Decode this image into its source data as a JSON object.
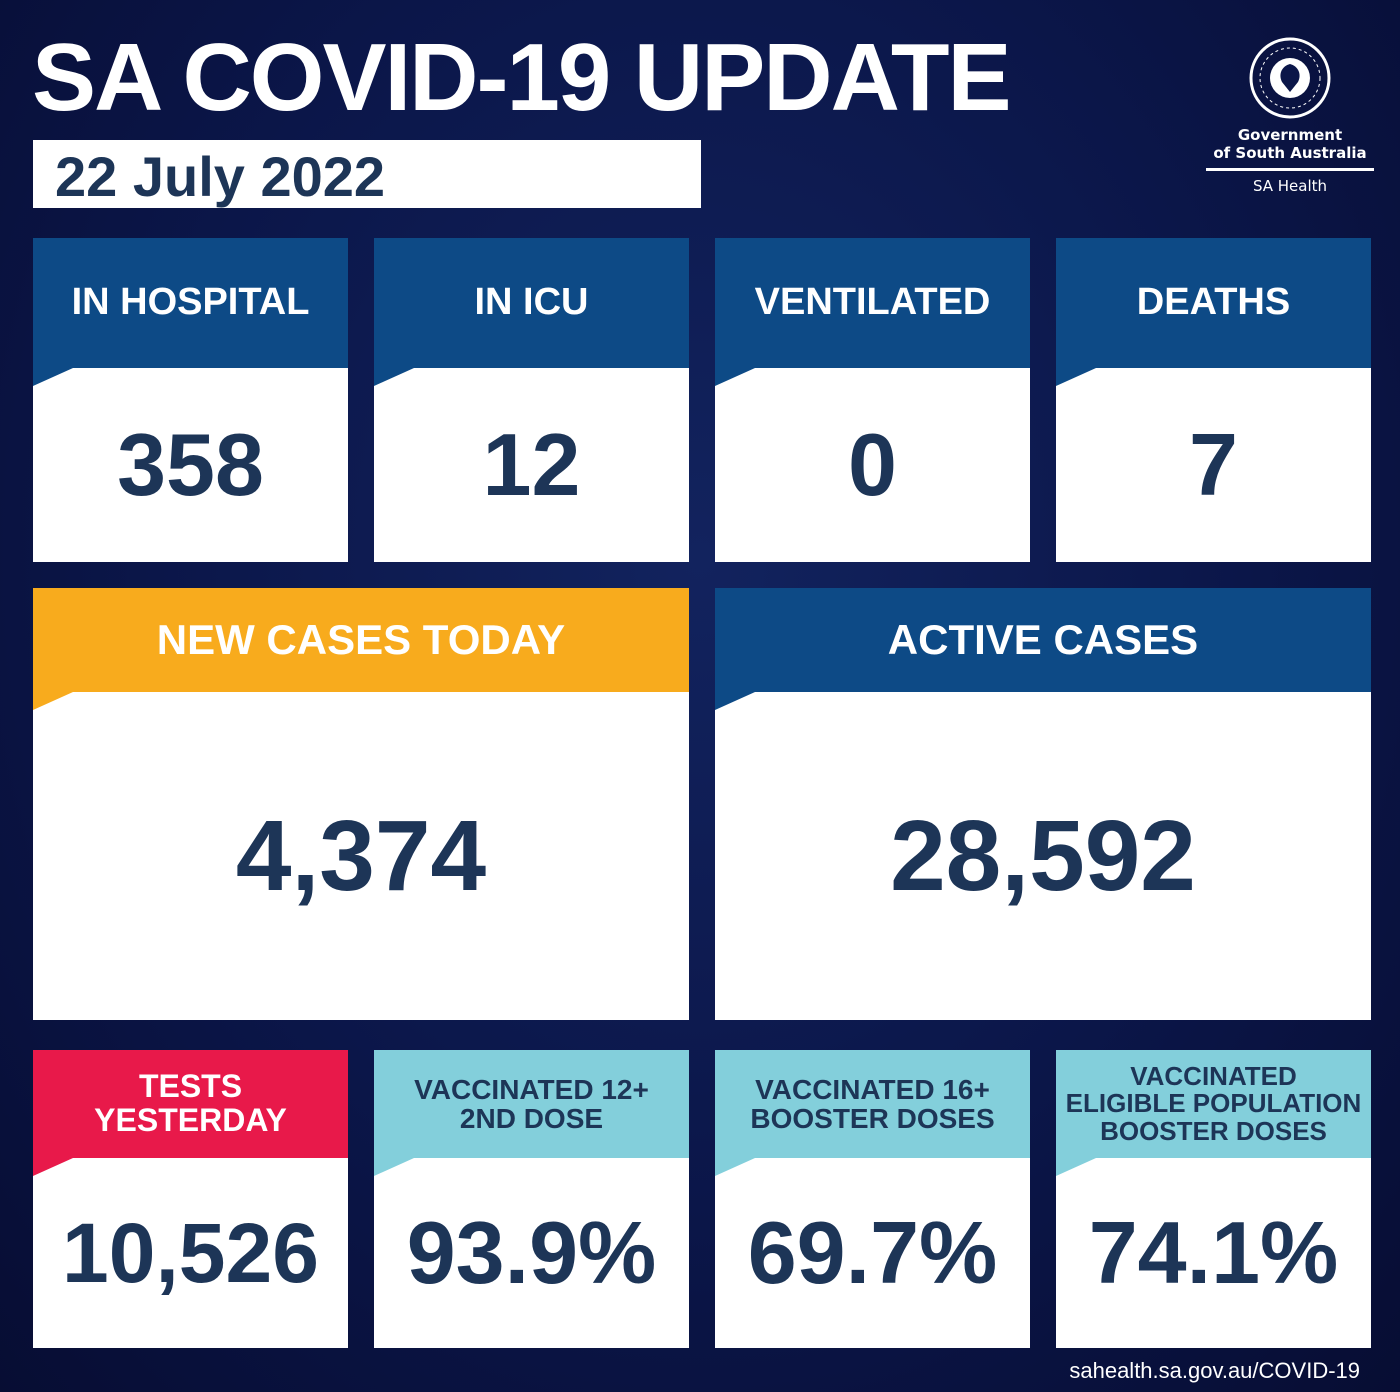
{
  "header": {
    "title": "SA COVID-19 UPDATE",
    "date": "22 July 2022"
  },
  "logo": {
    "seal_text": "SOUTH AUSTRALIA",
    "line1": "Government",
    "line2": "of South Australia",
    "line3": "SA Health"
  },
  "colors": {
    "background": "#0b1649",
    "header_blue": "#0d4a86",
    "new_cases": "#f8ab1d",
    "tests": "#e8194a",
    "vaccinated": "#83cfdb",
    "number": "#1d3557"
  },
  "row1": [
    {
      "label": "IN HOSPITAL",
      "value": "358"
    },
    {
      "label": "IN ICU",
      "value": "12"
    },
    {
      "label": "VENTILATED",
      "value": "0"
    },
    {
      "label": "DEATHS",
      "value": "7"
    }
  ],
  "row2": [
    {
      "label": "NEW CASES TODAY",
      "value": "4,374"
    },
    {
      "label": "ACTIVE CASES",
      "value": "28,592"
    }
  ],
  "row3": [
    {
      "label_lines": [
        "TESTS",
        "YESTERDAY"
      ],
      "value": "10,526"
    },
    {
      "label_lines": [
        "VACCINATED 12+",
        "2ND DOSE"
      ],
      "value": "93.9%"
    },
    {
      "label_lines": [
        "VACCINATED 16+",
        "BOOSTER DOSES"
      ],
      "value": "69.7%"
    },
    {
      "label_lines": [
        "VACCINATED",
        "ELIGIBLE POPULATION",
        "BOOSTER DOSES"
      ],
      "value": "74.1%"
    }
  ],
  "footer": {
    "url": "sahealth.sa.gov.au/COVID-19"
  }
}
